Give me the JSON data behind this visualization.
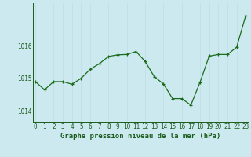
{
  "x": [
    0,
    1,
    2,
    3,
    4,
    5,
    6,
    7,
    8,
    9,
    10,
    11,
    12,
    13,
    14,
    15,
    16,
    17,
    18,
    19,
    20,
    21,
    22,
    23
  ],
  "y": [
    1014.9,
    1014.65,
    1014.9,
    1014.9,
    1014.82,
    1015.0,
    1015.28,
    1015.45,
    1015.67,
    1015.72,
    1015.73,
    1015.82,
    1015.52,
    1015.05,
    1014.83,
    1014.38,
    1014.38,
    1014.18,
    1014.88,
    1015.68,
    1015.73,
    1015.73,
    1015.95,
    1016.92
  ],
  "line_color": "#1a6b1a",
  "marker_color": "#1a6b1a",
  "bg_color": "#cce9f0",
  "grid_color_h": "#b8d8e0",
  "grid_color_v": "#c0dde5",
  "ylabel_ticks": [
    1014,
    1015,
    1016
  ],
  "ylim": [
    1013.65,
    1017.3
  ],
  "xlim": [
    -0.3,
    23.3
  ],
  "xlabel": "Graphe pression niveau de la mer (hPa)",
  "axis_color": "#1a5c1a",
  "tick_fontsize": 5.5,
  "xlabel_fontsize": 6.5
}
